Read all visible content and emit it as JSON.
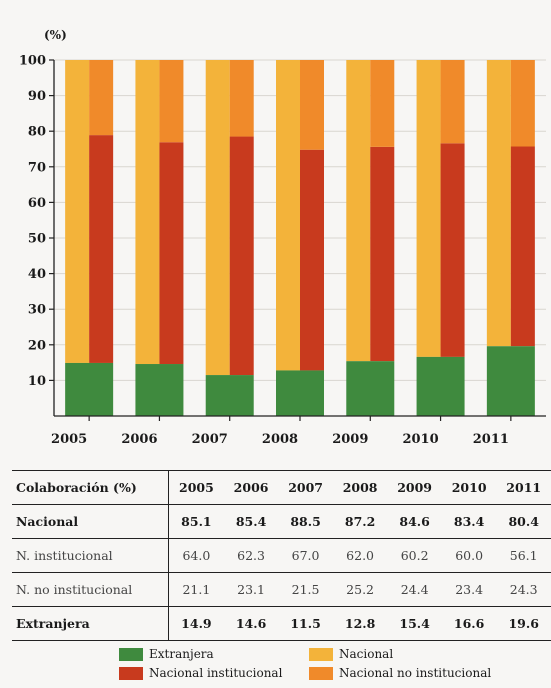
{
  "chart_data": {
    "type": "bar",
    "stacked": true,
    "ylabel": "(%)",
    "ylim": [
      0,
      100
    ],
    "yticks": [
      10,
      20,
      30,
      40,
      50,
      60,
      70,
      80,
      90,
      100
    ],
    "categories": [
      "2005",
      "2006",
      "2007",
      "2008",
      "2009",
      "2010",
      "2011"
    ],
    "series": [
      {
        "name": "Extranjera",
        "color": "#3f8a3e",
        "values": [
          14.9,
          14.6,
          11.5,
          12.8,
          15.4,
          16.6,
          19.6
        ]
      },
      {
        "name": "Nacional institucional",
        "color": "#c83a1e",
        "values": [
          64.0,
          62.3,
          67.0,
          62.0,
          60.2,
          60.0,
          56.1
        ]
      },
      {
        "name": "Nacional no institucional",
        "color": "#f08a2a",
        "values": [
          21.1,
          23.1,
          21.5,
          25.2,
          24.4,
          23.4,
          24.3
        ]
      }
    ],
    "overlay_series": {
      "name": "Nacional",
      "color": "#f3b33a",
      "values": [
        85.1,
        85.4,
        88.5,
        87.2,
        84.6,
        83.4,
        80.4
      ]
    }
  },
  "table": {
    "header": {
      "label": "Colaboración (%)",
      "values": [
        "2005",
        "2006",
        "2007",
        "2008",
        "2009",
        "2010",
        "2011"
      ]
    },
    "rows": [
      {
        "label": "Nacional",
        "values": [
          "85.1",
          "85.4",
          "88.5",
          "87.2",
          "84.6",
          "83.4",
          "80.4"
        ]
      },
      {
        "label": "N. institucional",
        "values": [
          "64.0",
          "62.3",
          "67.0",
          "62.0",
          "60.2",
          "60.0",
          "56.1"
        ]
      },
      {
        "label": "N. no institucional",
        "values": [
          "21.1",
          "23.1",
          "21.5",
          "25.2",
          "24.4",
          "23.4",
          "24.3"
        ]
      },
      {
        "label": "Extranjera",
        "values": [
          "14.9",
          "14.6",
          "11.5",
          "12.8",
          "15.4",
          "16.6",
          "19.6"
        ]
      }
    ]
  },
  "legend": {
    "items": [
      {
        "label": "Extranjera",
        "color": "#3f8a3e"
      },
      {
        "label": "Nacional",
        "color": "#f3b33a"
      },
      {
        "label": "Nacional institucional",
        "color": "#c83a1e"
      },
      {
        "label": "Nacional no institucional",
        "color": "#f08a2a"
      }
    ]
  }
}
